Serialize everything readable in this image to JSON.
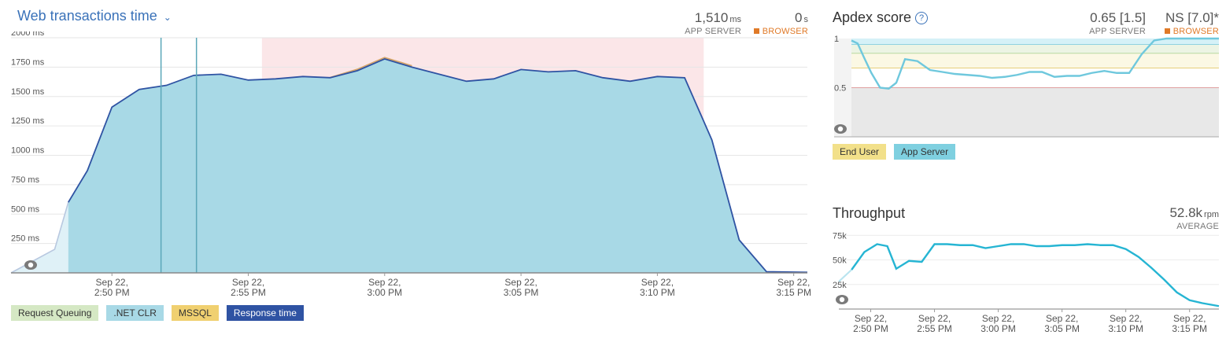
{
  "transactions": {
    "title": "Web transactions time",
    "app_server_value": "1,510",
    "app_server_unit": "ms",
    "app_server_caption": "APP SERVER",
    "browser_value": "0",
    "browser_unit": "s",
    "browser_caption": "BROWSER",
    "legend": [
      {
        "label": "Request Queuing",
        "color": "#d5e8c4"
      },
      {
        "label": ".NET CLR",
        "color": "#a8d9e6"
      },
      {
        "label": "MSSQL",
        "color": "#f0d070"
      },
      {
        "label": "Response time",
        "color": "#2f53a3"
      }
    ]
  },
  "apdex": {
    "title": "Apdex score",
    "help_icon": "question-circle-icon",
    "app_server_value": "0.65 [1.5]",
    "app_server_caption": "APP SERVER",
    "browser_value": "NS [7.0]*",
    "browser_caption": "BROWSER",
    "legend": [
      {
        "label": "End User",
        "color": "#f2e08a"
      },
      {
        "label": "App Server",
        "color": "#7fd0e0"
      }
    ]
  },
  "throughput": {
    "title": "Throughput",
    "value": "52.8k",
    "unit": "rpm",
    "caption": "AVERAGE"
  },
  "chart_data": [
    {
      "type": "area",
      "id": "response-time",
      "ylim": [
        0,
        2000
      ],
      "yticks": [
        250,
        500,
        750,
        1000,
        1250,
        1500,
        1750,
        2000
      ],
      "ytick_labels": [
        "250 ms",
        "500 ms",
        "750 ms",
        "1000 ms",
        "1250 ms",
        "1500 ms",
        "1750 ms",
        "2000 ms"
      ],
      "xlim_minutes": [
        -3.7,
        25.5
      ],
      "xticks": [
        {
          "minute": 0,
          "line1": "Sep 22,",
          "line2": "2:50 PM"
        },
        {
          "minute": 5,
          "line1": "Sep 22,",
          "line2": "2:55 PM"
        },
        {
          "minute": 10,
          "line1": "Sep 22,",
          "line2": "3:00 PM"
        },
        {
          "minute": 15,
          "line1": "Sep 22,",
          "line2": "3:05 PM"
        },
        {
          "minute": 20,
          "line1": "Sep 22,",
          "line2": "3:10 PM"
        },
        {
          "minute": 25,
          "line1": "Sep 22,",
          "line2": "3:15 PM"
        }
      ],
      "highlight_range_minutes": [
        5.5,
        21.7
      ],
      "event_markers_minutes": [
        1.8,
        3.1
      ],
      "response_time": {
        "minutes": [
          -3.7,
          -2.1,
          -1.6,
          -0.9,
          0,
          1,
          2,
          3,
          4,
          5,
          6,
          7,
          8,
          9,
          10,
          11,
          12,
          13,
          14,
          15,
          16,
          17,
          18,
          19,
          20,
          21,
          22,
          23,
          24,
          25.5
        ],
        "values": [
          0,
          200,
          600,
          870,
          1410,
          1560,
          1595,
          1680,
          1690,
          1640,
          1650,
          1670,
          1660,
          1720,
          1820,
          1750,
          1690,
          1630,
          1650,
          1730,
          1710,
          1720,
          1660,
          1630,
          1670,
          1660,
          1130,
          280,
          10,
          5
        ]
      },
      "mssql_bump": {
        "minutes": [
          8,
          9,
          10,
          11
        ],
        "values": [
          1660,
          1730,
          1830,
          1760
        ]
      }
    },
    {
      "type": "line",
      "id": "apdex",
      "ylim": [
        0,
        1
      ],
      "yticks": [
        0.5,
        1
      ],
      "ytick_labels": [
        "0.5",
        "1"
      ],
      "xlim_minutes": [
        -2.3,
        27.2
      ],
      "xticks": [
        {
          "minute": 0,
          "line1": "Sep 22,",
          "line2": "2:50 PM"
        },
        {
          "minute": 5,
          "line1": "Sep 22,",
          "line2": "2:55 PM"
        },
        {
          "minute": 10,
          "line1": "Sep 22,",
          "line2": "3:00 PM"
        },
        {
          "minute": 15,
          "line1": "Sep 22,",
          "line2": "3:05 PM"
        },
        {
          "minute": 20,
          "line1": "Sep 22,",
          "line2": "3:10 PM"
        },
        {
          "minute": 25,
          "line1": "Sep 22,",
          "line2": "3:15 PM"
        }
      ],
      "thresholds": [
        0.5,
        0.7,
        0.85,
        0.94
      ],
      "app_server": {
        "minutes": [
          -2.3,
          -1.8,
          -1.3,
          -0.7,
          0,
          0.7,
          1.3,
          2,
          3,
          4,
          5,
          6,
          7,
          8,
          9,
          10,
          11,
          12,
          13,
          14,
          15,
          16,
          17,
          18,
          19,
          20,
          21,
          22,
          23,
          24,
          25,
          26,
          27.2
        ],
        "values": [
          0.98,
          0.95,
          0.81,
          0.65,
          0.5,
          0.49,
          0.55,
          0.79,
          0.77,
          0.68,
          0.66,
          0.64,
          0.63,
          0.62,
          0.6,
          0.61,
          0.63,
          0.66,
          0.66,
          0.61,
          0.62,
          0.62,
          0.65,
          0.67,
          0.65,
          0.65,
          0.84,
          0.98,
          1,
          1,
          1,
          1,
          1
        ]
      }
    },
    {
      "type": "line",
      "id": "throughput",
      "ylim": [
        0,
        80000
      ],
      "yticks": [
        25000,
        50000,
        75000
      ],
      "ytick_labels": [
        "25k",
        "50k",
        "75k"
      ],
      "xlim_minutes": [
        -2.5,
        27.3
      ],
      "xticks": [
        {
          "minute": 0,
          "line1": "Sep 22,",
          "line2": "2:50 PM"
        },
        {
          "minute": 5,
          "line1": "Sep 22,",
          "line2": "2:55 PM"
        },
        {
          "minute": 10,
          "line1": "Sep 22,",
          "line2": "3:00 PM"
        },
        {
          "minute": 15,
          "line1": "Sep 22,",
          "line2": "3:05 PM"
        },
        {
          "minute": 20,
          "line1": "Sep 22,",
          "line2": "3:10 PM"
        },
        {
          "minute": 25,
          "line1": "Sep 22,",
          "line2": "3:15 PM"
        }
      ],
      "throughput_rpm": {
        "minutes": [
          -2.5,
          -1.5,
          -0.5,
          0.5,
          1.3,
          2,
          3,
          4,
          5,
          6,
          7,
          8,
          9,
          10,
          11,
          12,
          13,
          14,
          15,
          16,
          17,
          18,
          19,
          20,
          21,
          22,
          23,
          24,
          25,
          26,
          27.3
        ],
        "values": [
          28000,
          40000,
          58000,
          66000,
          64000,
          41000,
          49000,
          48000,
          66000,
          66000,
          65000,
          65000,
          62000,
          64000,
          66000,
          66000,
          64000,
          64000,
          65000,
          65000,
          66000,
          65000,
          65000,
          61000,
          53000,
          42000,
          30000,
          17000,
          9000,
          6000,
          3000
        ]
      }
    }
  ]
}
